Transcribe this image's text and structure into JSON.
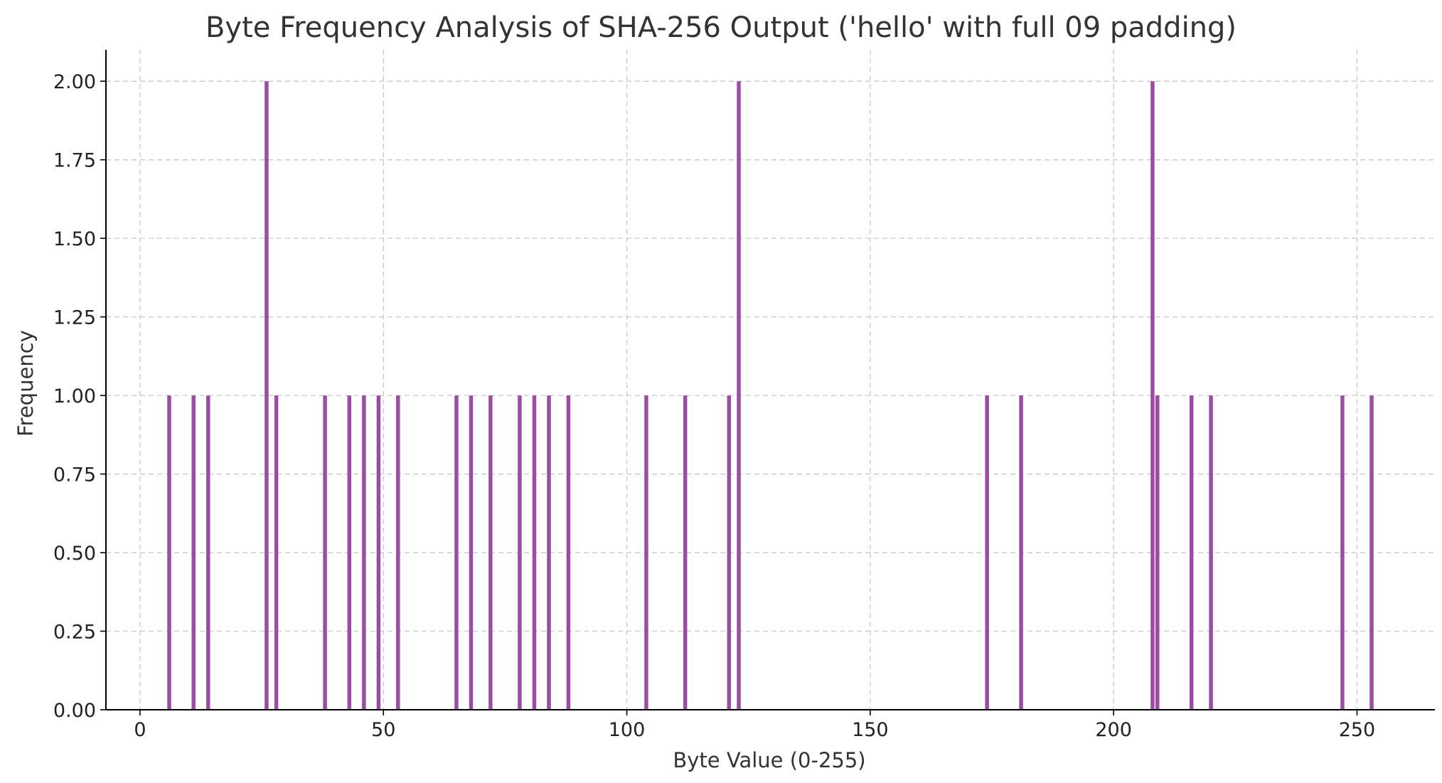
{
  "chart_data": {
    "type": "bar",
    "title": "Byte Frequency Analysis of SHA-256 Output ('hello' with full 09 padding)",
    "xlabel": "Byte Value (0-255)",
    "ylabel": "Frequency",
    "xlim": [
      -7,
      266
    ],
    "ylim": [
      0,
      2.1
    ],
    "x_ticks": [
      0,
      50,
      100,
      150,
      200,
      250
    ],
    "x_tick_labels": [
      "0",
      "50",
      "100",
      "150",
      "200",
      "250"
    ],
    "y_ticks": [
      0,
      0.25,
      0.5,
      0.75,
      1.0,
      1.25,
      1.5,
      1.75,
      2.0
    ],
    "y_tick_labels": [
      "0.00",
      "0.25",
      "0.50",
      "0.75",
      "1.00",
      "1.25",
      "1.50",
      "1.75",
      "2.00"
    ],
    "grid": true,
    "bar_color": "#9b4da3",
    "x": [
      6,
      11,
      14,
      26,
      28,
      38,
      43,
      46,
      49,
      53,
      65,
      68,
      72,
      78,
      81,
      84,
      88,
      104,
      112,
      121,
      123,
      174,
      181,
      208,
      209,
      216,
      220,
      247,
      253
    ],
    "values": [
      1,
      1,
      1,
      2,
      1,
      1,
      1,
      1,
      1,
      1,
      1,
      1,
      1,
      1,
      1,
      1,
      1,
      1,
      1,
      1,
      2,
      1,
      1,
      2,
      1,
      1,
      1,
      1,
      1
    ]
  }
}
